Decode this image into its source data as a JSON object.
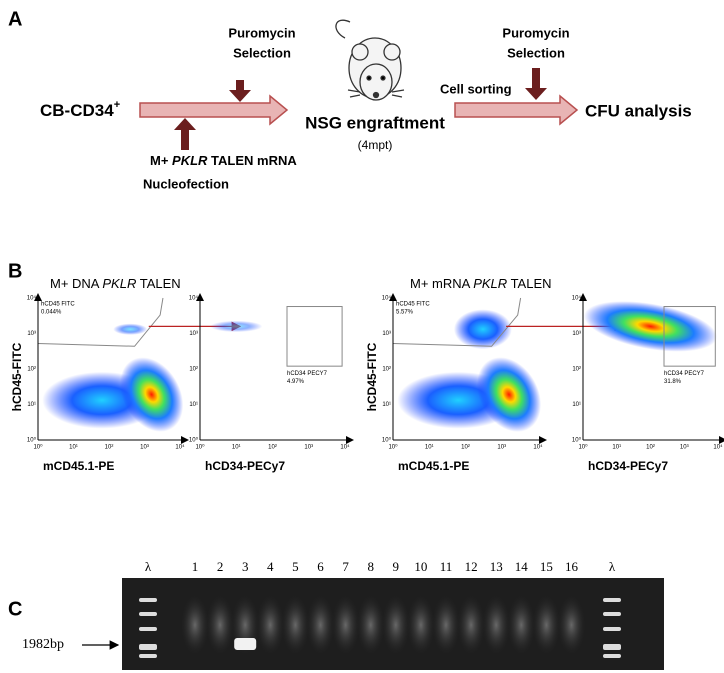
{
  "panel_a": {
    "label": "A",
    "start": "CB-CD34",
    "start_sup": "+",
    "selection_1": [
      "Puromycin",
      "Selection"
    ],
    "nucleofection": {
      "parts": [
        "M+ ",
        "PKLR",
        " TALEN mRNA"
      ],
      "line2": "Nucleofection"
    },
    "engraftment": "NSG engraftment",
    "engraftment_note": "(4mpt)",
    "sorting": "Cell sorting",
    "selection_2": [
      "Puromycin",
      "Selection"
    ],
    "end": "CFU analysis"
  },
  "panel_b": {
    "label": "B",
    "ticks": [
      "10⁰",
      "10¹",
      "10²",
      "10³",
      "10⁴"
    ],
    "groups": [
      {
        "title_parts": [
          "M+ DNA ",
          "PKLR",
          " TALEN"
        ],
        "plots": [
          {
            "gate": "hCD45 FITC",
            "percent": "0.044%",
            "y_label": "hCD45-FITC",
            "x_label": "mCD45.1-PE"
          },
          {
            "gate": "hCD34 PECY7",
            "percent": "4.97%",
            "x_label": "hCD34-PECy7"
          }
        ]
      },
      {
        "title_parts": [
          "M+ mRNA ",
          "PKLR",
          " TALEN"
        ],
        "plots": [
          {
            "gate": "hCD45 FITC",
            "percent": "5.57%",
            "y_label": "hCD45-FITC",
            "x_label": "mCD45.1-PE"
          },
          {
            "gate": "hCD34 PECY7",
            "percent": "31.8%",
            "x_label": "hCD34-PECy7"
          }
        ]
      }
    ]
  },
  "panel_c": {
    "label": "C",
    "lanes": [
      "λ",
      "1",
      "2",
      "3",
      "4",
      "5",
      "6",
      "7",
      "8",
      "9",
      "10",
      "11",
      "12",
      "13",
      "14",
      "15",
      "16",
      "λ"
    ],
    "band_size": "1982bp"
  }
}
